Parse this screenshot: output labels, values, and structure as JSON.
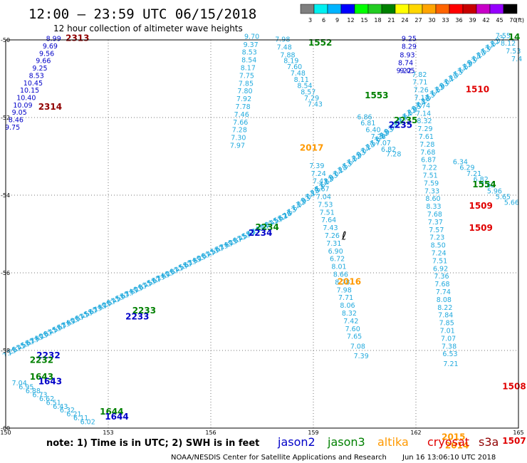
{
  "header": {
    "title": "12:00 – 23:59 UTC 06/15/2018",
    "subtitle": "12 hour collection of altimeter wave heights"
  },
  "colorbar": {
    "unit": "(ft)",
    "ticks": [
      "3",
      "6",
      "9",
      "12",
      "15",
      "18",
      "21",
      "24",
      "27",
      "30",
      "33",
      "36",
      "39",
      "42",
      "45",
      "70"
    ],
    "colors": [
      "#7f7f7f",
      "#00f0f0",
      "#00b4ff",
      "#0000ff",
      "#00ff00",
      "#22cc22",
      "#008000",
      "#ffff00",
      "#ffd700",
      "#ffa500",
      "#ff6400",
      "#ff0000",
      "#c80000",
      "#c800c8",
      "#9600ff",
      "#000000"
    ]
  },
  "axes": {
    "x_ticks": [
      150,
      153,
      156,
      159,
      162,
      165
    ],
    "y_ticks": [
      -50,
      -52,
      -54,
      -56,
      -58,
      -60
    ],
    "lon_range": [
      150,
      165
    ],
    "lat_range": [
      -60,
      -50
    ]
  },
  "footer": {
    "note": "note: 1) Time is in UTC; 2) SWH is in feet",
    "agency": "NOAA/NESDIS Center for Satellite Applications and Research",
    "timestamp": "Jun 16 13:06:10 UTC 2018"
  },
  "legend": [
    {
      "name": "jason2",
      "color": "#0000c8"
    },
    {
      "name": "jason3",
      "color": "#008000"
    },
    {
      "name": "altika",
      "color": "#ff9900"
    },
    {
      "name": "cryosat",
      "color": "#e00000"
    },
    {
      "name": "s3a",
      "color": "#900000"
    }
  ],
  "colors": {
    "swh_text": "#22aadd",
    "grid": "#777777"
  },
  "tracks": [
    {
      "sat": "s3a",
      "color": "#0000c8",
      "points": [
        [
          151.4,
          -50.03,
          "8.99"
        ],
        [
          151.3,
          -50.22,
          "9.69"
        ],
        [
          151.2,
          -50.41,
          "9.56"
        ],
        [
          151.1,
          -50.6,
          "9.66"
        ],
        [
          151.0,
          -50.79,
          "9.25"
        ],
        [
          150.9,
          -50.98,
          "8.53"
        ],
        [
          150.8,
          -51.17,
          "10.45"
        ],
        [
          150.7,
          -51.36,
          "10.15"
        ],
        [
          150.6,
          -51.55,
          "10.40"
        ],
        [
          150.5,
          -51.74,
          "10.09"
        ],
        [
          150.4,
          -51.93,
          "9.05"
        ],
        [
          150.3,
          -52.12,
          "8.46"
        ],
        [
          150.2,
          -52.31,
          "9.75"
        ]
      ]
    },
    {
      "sat": "jason3",
      "color": "#22aadd",
      "points": [
        [
          157.2,
          -49.97,
          "9.70"
        ],
        [
          157.17,
          -50.18,
          "9.37"
        ],
        [
          157.13,
          -50.38,
          "8.53"
        ],
        [
          157.12,
          -50.58,
          "8.54"
        ],
        [
          157.09,
          -50.78,
          "8.17"
        ],
        [
          157.05,
          -50.98,
          "7.75"
        ],
        [
          157.03,
          -51.18,
          "7.85"
        ],
        [
          157.0,
          -51.38,
          "7.80"
        ],
        [
          156.97,
          -51.58,
          "7.92"
        ],
        [
          156.94,
          -51.78,
          "7.78"
        ],
        [
          156.9,
          -51.98,
          "7.46"
        ],
        [
          156.87,
          -52.18,
          "7.66"
        ],
        [
          156.84,
          -52.38,
          "7.28"
        ],
        [
          156.81,
          -52.58,
          "7.30"
        ],
        [
          156.78,
          -52.78,
          "7.97"
        ]
      ]
    },
    {
      "sat": "jason3",
      "color": "#22aadd",
      "points": [
        [
          158.1,
          -50.05,
          "7.98"
        ],
        [
          158.15,
          -50.25,
          "7.48"
        ],
        [
          158.25,
          -50.45,
          "7.88"
        ],
        [
          158.35,
          -50.6,
          "8.19"
        ],
        [
          158.45,
          -50.75,
          "7.60"
        ],
        [
          158.55,
          -50.92,
          "7.48"
        ],
        [
          158.65,
          -51.08,
          "8.11"
        ],
        [
          158.75,
          -51.24,
          "8.54"
        ],
        [
          158.85,
          -51.4,
          "8.57"
        ],
        [
          158.95,
          -51.56,
          "7.29"
        ],
        [
          159.05,
          -51.72,
          "7.43"
        ]
      ]
    },
    {
      "sat": "jason3",
      "color": "#22aadd",
      "points": [
        [
          160.5,
          -52.05,
          "6.86"
        ],
        [
          160.6,
          -52.2,
          "6.81"
        ],
        [
          160.75,
          -52.38,
          "6.40"
        ],
        [
          160.9,
          -52.55,
          "7.28"
        ],
        [
          161.05,
          -52.72,
          "7.07"
        ],
        [
          161.2,
          -52.88,
          "6.82"
        ],
        [
          161.35,
          -53.0,
          "7.28"
        ]
      ]
    },
    {
      "sat": "cryosat",
      "color": "#22aadd",
      "points": [
        [
          162.1,
          -50.95,
          "7.82"
        ],
        [
          162.12,
          -51.15,
          "7.71"
        ],
        [
          162.15,
          -51.35,
          "7.26"
        ],
        [
          162.17,
          -51.55,
          "7.12"
        ],
        [
          162.2,
          -51.75,
          "7.74"
        ],
        [
          162.22,
          -51.95,
          "7.14"
        ],
        [
          162.25,
          -52.15,
          "8.32"
        ],
        [
          162.27,
          -52.35,
          "7.29"
        ],
        [
          162.3,
          -52.55,
          "7.61"
        ],
        [
          162.33,
          -52.75,
          "7.28"
        ],
        [
          162.35,
          -52.95,
          "7.68"
        ],
        [
          162.37,
          -53.15,
          "6.87"
        ],
        [
          162.4,
          -53.35,
          "7.22"
        ],
        [
          162.42,
          -53.55,
          "7.51"
        ],
        [
          162.45,
          -53.75,
          "7.59"
        ],
        [
          162.47,
          -53.95,
          "7.33"
        ],
        [
          162.5,
          -54.15,
          "8.60"
        ],
        [
          162.52,
          -54.35,
          "8.33"
        ],
        [
          162.55,
          -54.55,
          "7.68"
        ],
        [
          162.57,
          -54.75,
          "7.37"
        ],
        [
          162.6,
          -54.95,
          "7.57"
        ],
        [
          162.62,
          -55.15,
          "7.23"
        ],
        [
          162.65,
          -55.35,
          "8.50"
        ],
        [
          162.67,
          -55.55,
          "7.24"
        ],
        [
          162.7,
          -55.75,
          "7.51"
        ],
        [
          162.72,
          -55.95,
          "6.92"
        ],
        [
          162.75,
          -56.15,
          "7.36"
        ],
        [
          162.77,
          -56.35,
          "7.68"
        ],
        [
          162.8,
          -56.55,
          "7.74"
        ],
        [
          162.82,
          -56.75,
          "8.08"
        ],
        [
          162.85,
          -56.95,
          "8.22"
        ],
        [
          162.87,
          -57.15,
          "7.84"
        ],
        [
          162.9,
          -57.35,
          "7.85"
        ],
        [
          162.92,
          -57.55,
          "7.01"
        ],
        [
          162.95,
          -57.75,
          "7.07"
        ],
        [
          162.97,
          -57.95,
          "7.38"
        ],
        [
          163.0,
          -58.15,
          "6.53"
        ],
        [
          163.02,
          -58.4,
          "7.21"
        ]
      ]
    },
    {
      "sat": "altika",
      "color": "#22aadd",
      "points": [
        [
          159.1,
          -53.3,
          "7.39"
        ],
        [
          159.15,
          -53.5,
          "7.24"
        ],
        [
          159.2,
          -53.7,
          "7.43"
        ],
        [
          159.25,
          -53.9,
          "6.67"
        ],
        [
          159.3,
          -54.1,
          "7.04"
        ],
        [
          159.35,
          -54.3,
          "7.53"
        ],
        [
          159.4,
          -54.5,
          "7.51"
        ],
        [
          159.45,
          -54.7,
          "7.64"
        ],
        [
          159.5,
          -54.9,
          "7.43"
        ],
        [
          159.55,
          -55.1,
          "7.26"
        ],
        [
          159.6,
          -55.3,
          "7.31"
        ],
        [
          159.65,
          -55.5,
          "6.90"
        ],
        [
          159.7,
          -55.7,
          "6.72"
        ],
        [
          159.75,
          -55.9,
          "8.01"
        ],
        [
          159.8,
          -56.1,
          "8.66"
        ],
        [
          159.85,
          -56.3,
          "8.78"
        ],
        [
          159.9,
          -56.5,
          "7.98"
        ],
        [
          159.95,
          -56.7,
          "7.71"
        ],
        [
          160.0,
          -56.9,
          "8.06"
        ],
        [
          160.05,
          -57.1,
          "8.32"
        ],
        [
          160.1,
          -57.3,
          "7.42"
        ],
        [
          160.15,
          -57.5,
          "7.60"
        ],
        [
          160.2,
          -57.7,
          "7.65"
        ],
        [
          160.3,
          -57.95,
          "7.08"
        ],
        [
          160.4,
          -58.2,
          "7.39"
        ]
      ]
    },
    {
      "sat": "jason2",
      "color": "#0000c8",
      "points": [
        [
          161.8,
          -50.03,
          "9.25"
        ],
        [
          161.8,
          -50.23,
          "8.29"
        ],
        [
          161.75,
          -50.45,
          "8.93"
        ],
        [
          161.7,
          -50.65,
          "8.74"
        ],
        [
          161.65,
          -50.85,
          "9.22"
        ],
        [
          161.75,
          -50.85,
          "9.05"
        ]
      ]
    },
    {
      "sat": "cryosat",
      "color": "#22aadd",
      "points": [
        [
          163.3,
          -53.2,
          "6.34"
        ],
        [
          163.5,
          -53.35,
          "6.29"
        ],
        [
          163.7,
          -53.5,
          "7.21"
        ],
        [
          163.9,
          -53.65,
          "6.82"
        ],
        [
          164.1,
          -53.8,
          "7.62"
        ],
        [
          164.3,
          -53.95,
          "5.96"
        ],
        [
          164.55,
          -54.1,
          "5.65"
        ],
        [
          164.8,
          -54.25,
          "5.66"
        ]
      ]
    },
    {
      "sat": "s3a",
      "color": "#22aadd",
      "points": [
        [
          164.55,
          -49.95,
          "7.55"
        ],
        [
          164.7,
          -50.15,
          "8.12"
        ],
        [
          164.85,
          -50.35,
          "7.53"
        ],
        [
          164.95,
          -50.55,
          "7.4"
        ]
      ]
    },
    {
      "sat": "jason2",
      "color": "#22aadd",
      "points": [
        [
          150.4,
          -58.9,
          "7.04"
        ],
        [
          150.6,
          -59.0,
          "6.95"
        ],
        [
          150.8,
          -59.1,
          "6.88"
        ],
        [
          151.0,
          -59.2,
          "6.73"
        ],
        [
          151.2,
          -59.3,
          "6.62"
        ],
        [
          151.4,
          -59.4,
          "6.51"
        ],
        [
          151.6,
          -59.5,
          "6.43"
        ],
        [
          151.8,
          -59.6,
          "6.32"
        ],
        [
          152.0,
          -59.7,
          "6.21"
        ],
        [
          152.2,
          -59.8,
          "6.11"
        ],
        [
          152.4,
          -59.9,
          "6.02"
        ]
      ]
    }
  ],
  "diag_tracks": [
    {
      "from": [
        150.15,
        -58.1
      ],
      "to": [
        158.2,
        -54.6
      ],
      "n": 62,
      "value_cycle": [
        "7.26",
        "7.31",
        "7.45",
        "7.58",
        "7.62",
        "7.74",
        "7.80"
      ]
    },
    {
      "from": [
        158.2,
        -54.6
      ],
      "to": [
        164.55,
        -49.97
      ],
      "n": 48,
      "value_cycle": [
        "7.28",
        "7.53",
        "7.64",
        "7.82",
        "7.93",
        "8.04"
      ]
    }
  ],
  "labels": [
    {
      "text": "2313",
      "lon": 152.1,
      "lat": -50.03,
      "color": "#900000"
    },
    {
      "text": "2314",
      "lon": 151.3,
      "lat": -51.8,
      "color": "#900000"
    },
    {
      "text": "1552",
      "lon": 159.2,
      "lat": -50.15,
      "color": "#008000"
    },
    {
      "text": "1553",
      "lon": 160.85,
      "lat": -51.5,
      "color": "#008000"
    },
    {
      "text": "2235",
      "lon": 161.7,
      "lat": -52.15,
      "color": "#008000"
    },
    {
      "text": "2235",
      "lon": 161.55,
      "lat": -52.27,
      "color": "#0000c8"
    },
    {
      "text": "1510",
      "lon": 163.8,
      "lat": -51.35,
      "color": "#e00000"
    },
    {
      "text": "2017",
      "lon": 158.95,
      "lat": -52.85,
      "color": "#ff9900"
    },
    {
      "text": "1554",
      "lon": 164.0,
      "lat": -53.8,
      "color": "#008000"
    },
    {
      "text": "1509",
      "lon": 163.9,
      "lat": -54.35,
      "color": "#e00000"
    },
    {
      "text": "1509",
      "lon": 163.9,
      "lat": -54.92,
      "color": "#e00000"
    },
    {
      "text": "2234",
      "lon": 157.65,
      "lat": -54.9,
      "color": "#008000"
    },
    {
      "text": "2234",
      "lon": 157.45,
      "lat": -55.05,
      "color": "#0000c8"
    },
    {
      "text": "2016",
      "lon": 160.05,
      "lat": -56.3,
      "color": "#ff9900"
    },
    {
      "text": "2233",
      "lon": 154.05,
      "lat": -57.05,
      "color": "#008000"
    },
    {
      "text": "2233",
      "lon": 153.85,
      "lat": -57.2,
      "color": "#0000c8"
    },
    {
      "text": "2232",
      "lon": 151.25,
      "lat": -58.2,
      "color": "#0000c8"
    },
    {
      "text": "2232",
      "lon": 151.05,
      "lat": -58.32,
      "color": "#008000"
    },
    {
      "text": "1508",
      "lon": 164.95,
      "lat": -59.0,
      "color": "#e00000"
    },
    {
      "text": "1643",
      "lon": 151.05,
      "lat": -58.75,
      "color": "#008000"
    },
    {
      "text": "1643",
      "lon": 151.3,
      "lat": -58.87,
      "color": "#0000c8"
    },
    {
      "text": "1644",
      "lon": 153.1,
      "lat": -59.65,
      "color": "#008000"
    },
    {
      "text": "1644",
      "lon": 153.25,
      "lat": -59.78,
      "color": "#0000c8"
    },
    {
      "text": "2015",
      "lon": 163.1,
      "lat": -60.3,
      "color": "#ff9900"
    },
    {
      "text": "2014",
      "lon": 163.2,
      "lat": -60.52,
      "color": "#ff9900"
    },
    {
      "text": "1507",
      "lon": 165.3,
      "lat": -60.4,
      "color": "#e00000"
    },
    {
      "text": "14",
      "lon": 165.6,
      "lat": -50.0,
      "color": "#008000"
    }
  ],
  "note_marker": {
    "text": "ℓ",
    "lon": 159.9,
    "lat": -55.15
  }
}
